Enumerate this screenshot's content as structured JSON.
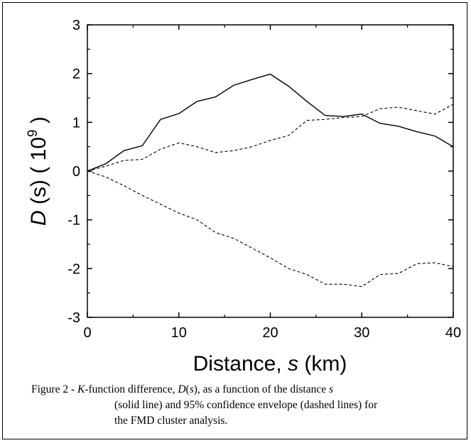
{
  "chart_data": {
    "type": "line",
    "xlabel_parts": [
      "Distance, ",
      "s",
      " (km)"
    ],
    "ylabel_parts": [
      "D",
      " (s) ( 10",
      "9",
      " )"
    ],
    "xlim": [
      0,
      40
    ],
    "ylim": [
      -3,
      3
    ],
    "x_ticks": [
      0,
      10,
      20,
      30,
      40
    ],
    "y_ticks": [
      -3,
      -2,
      -1,
      0,
      1,
      2,
      3
    ],
    "series": [
      {
        "style": "solid",
        "x": [
          0,
          2,
          4,
          6,
          8,
          10,
          12,
          14,
          16,
          18,
          20,
          22,
          24,
          26,
          28,
          30,
          32,
          34,
          36,
          38,
          40
        ],
        "y": [
          0,
          0.15,
          0.42,
          0.52,
          1.06,
          1.18,
          1.43,
          1.52,
          1.76,
          1.88,
          1.99,
          1.74,
          1.43,
          1.14,
          1.12,
          1.17,
          0.98,
          0.92,
          0.81,
          0.72,
          0.5
        ]
      },
      {
        "style": "dashed",
        "x": [
          0,
          2,
          4,
          6,
          8,
          10,
          12,
          14,
          16,
          18,
          20,
          22,
          24,
          26,
          28,
          30,
          32,
          34,
          36,
          38,
          40
        ],
        "y": [
          0,
          0.1,
          0.22,
          0.24,
          0.45,
          0.58,
          0.5,
          0.38,
          0.42,
          0.5,
          0.63,
          0.73,
          1.04,
          1.06,
          1.1,
          1.12,
          1.28,
          1.31,
          1.24,
          1.17,
          1.37
        ]
      },
      {
        "style": "dashed",
        "x": [
          0,
          2,
          4,
          6,
          8,
          10,
          12,
          14,
          16,
          18,
          20,
          22,
          24,
          26,
          28,
          30,
          32,
          34,
          36,
          38,
          40
        ],
        "y": [
          0,
          -0.12,
          -0.3,
          -0.5,
          -0.68,
          -0.86,
          -1.0,
          -1.26,
          -1.38,
          -1.58,
          -1.78,
          -2.0,
          -2.12,
          -2.32,
          -2.32,
          -2.37,
          -2.12,
          -2.1,
          -1.9,
          -1.88,
          -1.96
        ]
      }
    ]
  },
  "caption": {
    "prefix": "Figure 2 - ",
    "k_italic": "K",
    "part1": "-function difference, ",
    "d_italic": "D",
    "paren_open": "(",
    "s_italic": "s",
    "part2": "), as a function of the distance ",
    "s2_italic": "s",
    "line2": "(solid line) and 95% confidence envelope (dashed lines) for",
    "line3": "the FMD cluster analysis."
  }
}
